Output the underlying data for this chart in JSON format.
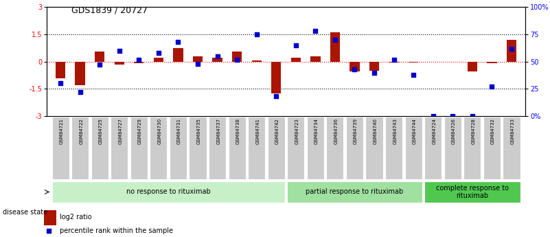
{
  "title": "GDS1839 / 20727",
  "samples": [
    "GSM84721",
    "GSM84722",
    "GSM84725",
    "GSM84727",
    "GSM84729",
    "GSM84730",
    "GSM84731",
    "GSM84735",
    "GSM84737",
    "GSM84738",
    "GSM84741",
    "GSM84742",
    "GSM84723",
    "GSM84734",
    "GSM84736",
    "GSM84739",
    "GSM84740",
    "GSM84743",
    "GSM84744",
    "GSM84724",
    "GSM84726",
    "GSM84728",
    "GSM84732",
    "GSM84733"
  ],
  "log2_ratio": [
    -0.9,
    -1.3,
    0.55,
    -0.15,
    -0.1,
    0.2,
    0.75,
    0.3,
    0.2,
    0.55,
    0.05,
    -1.75,
    0.2,
    0.3,
    1.6,
    -0.55,
    -0.5,
    -0.05,
    -0.05,
    0.0,
    0.0,
    -0.55,
    -0.1,
    1.2
  ],
  "percentile_rank": [
    30,
    22,
    47,
    60,
    52,
    58,
    68,
    48,
    55,
    52,
    75,
    18,
    65,
    78,
    70,
    43,
    40,
    52,
    38,
    0,
    0,
    0,
    27,
    62
  ],
  "groups": [
    {
      "label": "no response to rituximab",
      "start": 0,
      "end": 12,
      "color": "#c8f0c8"
    },
    {
      "label": "partial response to rituximab",
      "start": 12,
      "end": 19,
      "color": "#a0e0a0"
    },
    {
      "label": "complete response to\nrituximab",
      "start": 19,
      "end": 24,
      "color": "#50c850"
    }
  ],
  "bar_color": "#aa1500",
  "dot_color": "#0000cc",
  "bar_width": 0.5,
  "dot_size": 22,
  "yticks_left": [
    -3,
    -1.5,
    0,
    1.5,
    3
  ],
  "ytick_labels_left": [
    "-3",
    "-1.5",
    "0",
    "1.5",
    "3"
  ],
  "ytick_labels_right": [
    "0%",
    "25",
    "50",
    "75",
    "100%"
  ],
  "yticks_right": [
    0,
    25,
    50,
    75,
    100
  ]
}
